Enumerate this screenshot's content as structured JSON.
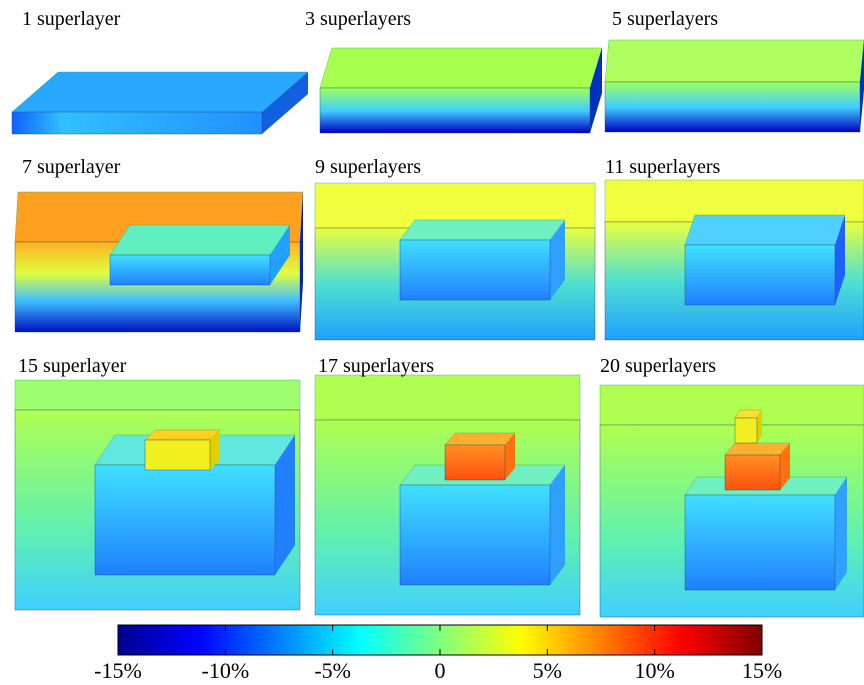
{
  "panels": [
    {
      "title": "1 superlayer"
    },
    {
      "title": "3 superlayers"
    },
    {
      "title": "5 superlayers"
    },
    {
      "title": "7 superlayer"
    },
    {
      "title": "9 superlayers"
    },
    {
      "title": "11 superlayers"
    },
    {
      "title": "15 superlayer"
    },
    {
      "title": "17 superlayers"
    },
    {
      "title": "20 superlayers"
    }
  ],
  "colorbar": {
    "lim": [
      -15,
      15
    ],
    "ticks": [
      {
        "value": -15,
        "label": "-15%"
      },
      {
        "value": -10,
        "label": "-10%"
      },
      {
        "value": -5,
        "label": "-5%"
      },
      0,
      {
        "value": 5,
        "label": "5%"
      },
      {
        "value": 10,
        "label": "10%"
      },
      {
        "value": 15,
        "label": "15%"
      }
    ]
  }
}
